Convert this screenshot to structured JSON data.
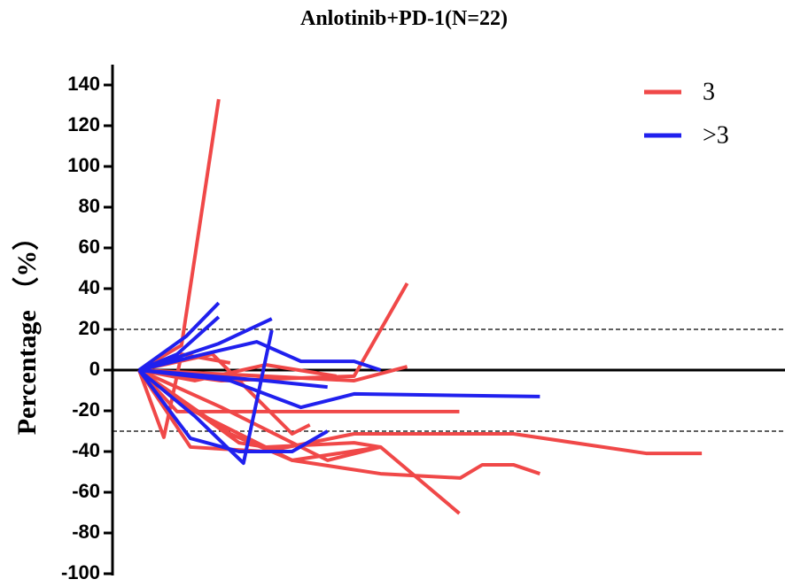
{
  "chart_data": {
    "type": "line",
    "title": "Anlotinib+PD-1(N=22)",
    "y_label": "Percentage （%）",
    "xlim": [
      0,
      38
    ],
    "ylim": [
      -100,
      150
    ],
    "yticks": [
      -100,
      -80,
      -60,
      -40,
      -20,
      0,
      20,
      40,
      60,
      80,
      100,
      120,
      140
    ],
    "reference_lines": [
      20,
      -30
    ],
    "legend": "upper right",
    "series": [
      {
        "name": "3",
        "color": "#f04848",
        "lines": [
          {
            "x": [
              1.5,
              3.9,
              6
            ],
            "values": [
              0,
              12.2,
              133
            ]
          },
          {
            "x": [
              1.5,
              2.9,
              3.9,
              6.65
            ],
            "values": [
              0,
              -33,
              7.8,
              3.5
            ]
          },
          {
            "x": [
              1.5,
              4.4,
              8.65,
              13.65,
              19.65,
              22.65,
              30.15,
              33.3
            ],
            "values": [
              0,
              -37.8,
              -40,
              -31.3,
              -31.3,
              -31.3,
              -40.9,
              -40.9
            ]
          },
          {
            "x": [
              1.5,
              4.65,
              10.15,
              15.15,
              19.65,
              20.9,
              22.65,
              24.15
            ],
            "values": [
              0,
              -20.4,
              -44.3,
              -50.9,
              -53,
              -46.5,
              -46.5,
              -50.9
            ]
          },
          {
            "x": [
              1.5,
              6.65,
              10.15,
              15.15,
              19.6
            ],
            "values": [
              0,
              -31.3,
              -44.3,
              -37.8,
              -70.4
            ]
          },
          {
            "x": [
              1.5,
              6.15,
              13.65,
              16.65
            ],
            "values": [
              0,
              -5.2,
              -3,
              42.6
            ]
          },
          {
            "x": [
              1.5,
              8.65,
              13.65,
              16.65
            ],
            "values": [
              0,
              -3,
              -5.2,
              1.7
            ]
          },
          {
            "x": [
              1.5,
              3.65,
              8.65,
              12.15,
              19.6
            ],
            "values": [
              0,
              -20.4,
              -20.4,
              -20.4,
              -20.4
            ]
          },
          {
            "x": [
              1.5,
              6.15,
              12.15,
              15.15
            ],
            "values": [
              0,
              -18.3,
              -44.3,
              -37.8
            ]
          },
          {
            "x": [
              1.5,
              4.65,
              8.65,
              12.65
            ],
            "values": [
              0,
              -5.2,
              2.6,
              -3
            ]
          },
          {
            "x": [
              1.5,
              5.65,
              10.15,
              11.15
            ],
            "values": [
              0,
              7.8,
              -31.3,
              -26.9
            ]
          },
          {
            "x": [
              1.5,
              7.15,
              8.65,
              13.65,
              15.15
            ],
            "values": [
              0,
              -35.7,
              -37.8,
              -35.7,
              -37.8
            ]
          }
        ]
      },
      {
        "name": ">3",
        "color": "#2020ee",
        "lines": [
          {
            "x": [
              1.5,
              4.15,
              6
            ],
            "values": [
              0,
              16.5,
              33
            ]
          },
          {
            "x": [
              1.5,
              3.65,
              6
            ],
            "values": [
              0,
              7.8,
              26.1
            ]
          },
          {
            "x": [
              1.5,
              6,
              9
            ],
            "values": [
              0,
              13,
              25.2
            ]
          },
          {
            "x": [
              1.5,
              5.15,
              8.15,
              10.65,
              13.65,
              15.15
            ],
            "values": [
              0,
              7.8,
              13.9,
              4.3,
              4.3,
              0
            ]
          },
          {
            "x": [
              1.5,
              4.65,
              7.4,
              9
            ],
            "values": [
              0,
              -22.6,
              -45.7,
              19.6
            ]
          },
          {
            "x": [
              1.5,
              8.65,
              12.15
            ],
            "values": [
              0,
              -5.2,
              -8.3
            ]
          },
          {
            "x": [
              1.5,
              6.65,
              10.65,
              13.65,
              24.15
            ],
            "values": [
              0,
              -5.2,
              -18.3,
              -11.7,
              -13
            ]
          },
          {
            "x": [
              1.5,
              4.4,
              7.15,
              10.15,
              12.15
            ],
            "values": [
              0,
              -33.5,
              -40,
              -40,
              -30
            ]
          }
        ]
      }
    ]
  }
}
